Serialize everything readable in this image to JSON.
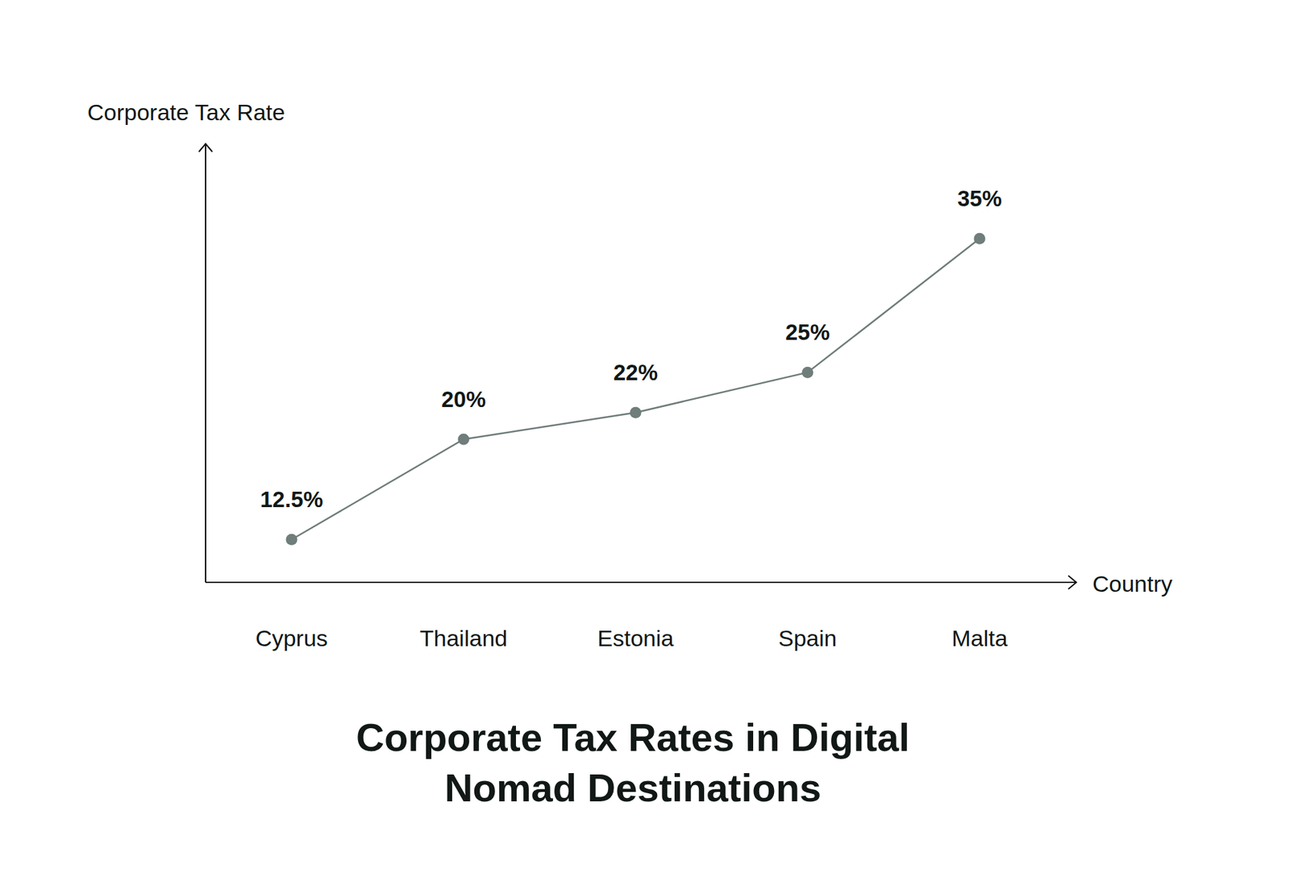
{
  "chart_data": {
    "type": "line",
    "title": "Corporate Tax Rates in Digital Nomad Destinations",
    "x_label": "Country",
    "y_label": "Corporate Tax Rate",
    "categories": [
      "Cyprus",
      "Thailand",
      "Estonia",
      "Spain",
      "Malta"
    ],
    "values": [
      12.5,
      20,
      22,
      25,
      35
    ],
    "value_labels": [
      "12.5%",
      "20%",
      "22%",
      "25%",
      "35%"
    ],
    "color": "#6f7d7b",
    "marker": "circle",
    "line_style": "solid",
    "ylim": [
      9.3,
      42.1
    ],
    "grid": false,
    "data_labels": true,
    "tick_labels": false
  }
}
